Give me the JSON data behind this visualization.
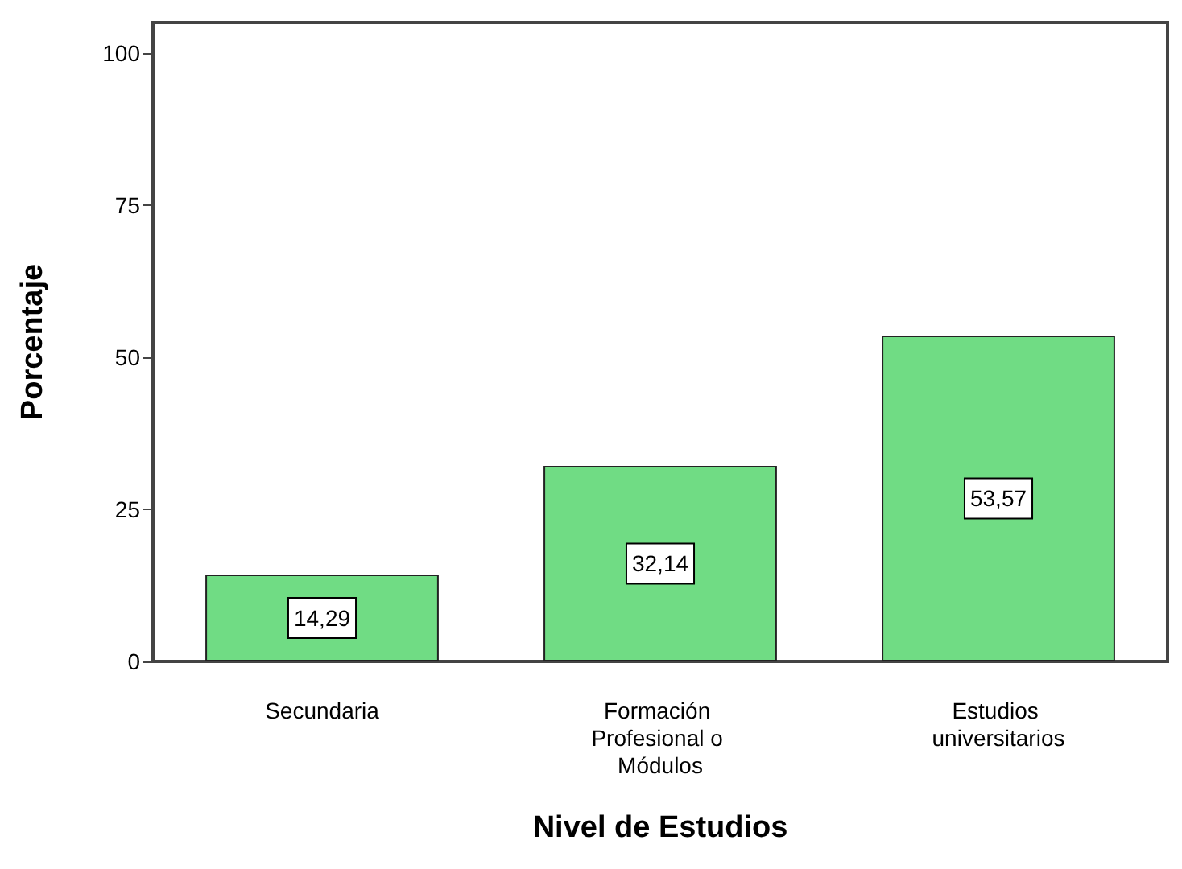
{
  "chart_data": {
    "type": "bar",
    "xlabel": "Nivel de Estudios",
    "ylabel": "Porcentaje",
    "categories": [
      "Secundaria",
      "Formación Profesional o Módulos",
      "Estudios universitarios"
    ],
    "values": [
      14.29,
      32.14,
      53.57
    ],
    "value_labels": [
      "14,29",
      "32,14",
      "53,57"
    ],
    "color": "#70dc84",
    "ylim": [
      0,
      105
    ],
    "yticks": [
      0,
      25,
      50,
      75,
      100
    ],
    "grid": false
  }
}
